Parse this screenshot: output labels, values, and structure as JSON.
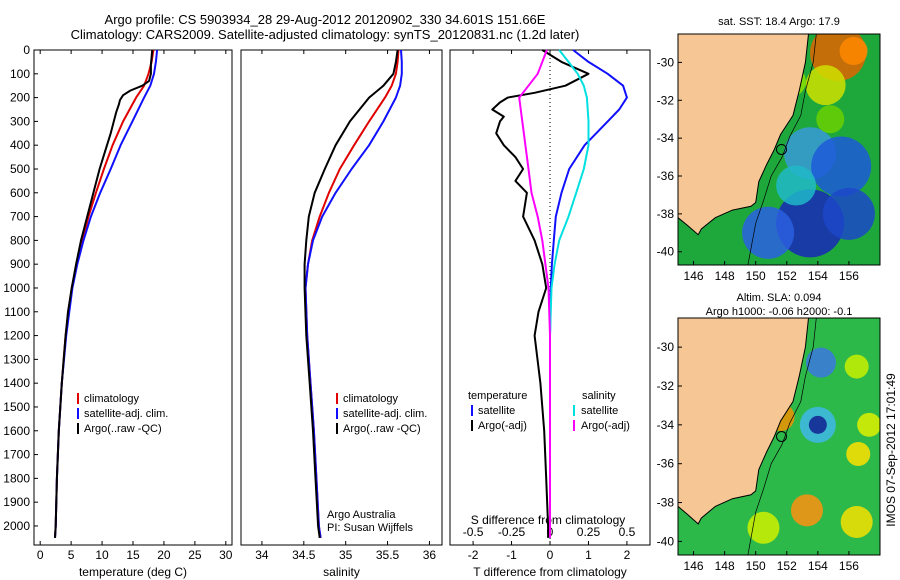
{
  "header": {
    "line1": "Argo profile: CS 5903934_28 29-Aug-2012 20120902_330 34.601S 151.66E",
    "line2": "Climatology: CARS2009. Satellite-adjusted climatology: synTS_20120831.nc (1.2d later)"
  },
  "colors": {
    "climatology": "#e00000",
    "satellite": "#1010ff",
    "argo": "#000000",
    "sat_salinity": "#00e0e0",
    "argo_salinity": "#ff00ff",
    "land": "#f6c795"
  },
  "chart_data": [
    {
      "type": "line",
      "id": "temperature",
      "xlabel": "temperature (deg C)",
      "xlim": [
        -1,
        31
      ],
      "ylim": [
        2080,
        0
      ],
      "xticks": [
        "0",
        "5",
        "10",
        "15",
        "20",
        "25",
        "30"
      ],
      "yticks": [
        "0",
        "100",
        "200",
        "300",
        "400",
        "500",
        "600",
        "700",
        "800",
        "900",
        "1000",
        "1100",
        "1200",
        "1300",
        "1400",
        "1500",
        "1600",
        "1700",
        "1800",
        "1900",
        "2000"
      ],
      "legend": [
        "climatology",
        "satellite-adj. clim.",
        "Argo(..raw -QC)"
      ],
      "series": [
        {
          "name": "climatology",
          "depth": [
            0,
            50,
            100,
            150,
            200,
            300,
            400,
            500,
            600,
            700,
            800,
            900,
            1000,
            1200,
            1400,
            1600,
            1800,
            2000,
            2050
          ],
          "values": [
            18.3,
            18.0,
            17.5,
            16.8,
            15.5,
            13.4,
            11.7,
            10.3,
            9.0,
            7.8,
            6.8,
            5.9,
            5.1,
            4.1,
            3.5,
            3.0,
            2.7,
            2.5,
            2.4
          ]
        },
        {
          "name": "satellite-adj. clim.",
          "depth": [
            0,
            50,
            100,
            150,
            200,
            300,
            400,
            500,
            600,
            700,
            800,
            900,
            1000,
            1200,
            1400,
            1600,
            1800,
            2000,
            2050
          ],
          "values": [
            18.9,
            18.7,
            18.4,
            17.8,
            16.8,
            14.9,
            13.0,
            11.4,
            9.7,
            8.2,
            7.0,
            6.0,
            5.2,
            4.2,
            3.5,
            3.0,
            2.7,
            2.5,
            2.4
          ]
        },
        {
          "name": "Argo(..raw -QC)",
          "depth": [
            0,
            30,
            60,
            100,
            130,
            150,
            170,
            190,
            210,
            230,
            260,
            300,
            350,
            400,
            450,
            500,
            600,
            700,
            800,
            900,
            1000,
            1100,
            1200,
            1400,
            1600,
            1800,
            2000,
            2050
          ],
          "values": [
            18.1,
            18.0,
            17.9,
            17.9,
            17.6,
            16.5,
            14.6,
            13.4,
            12.9,
            12.7,
            12.3,
            11.9,
            11.4,
            10.8,
            10.2,
            9.6,
            8.6,
            7.6,
            6.6,
            5.8,
            5.1,
            4.5,
            4.1,
            3.5,
            3.0,
            2.7,
            2.5,
            2.4
          ]
        }
      ]
    },
    {
      "type": "line",
      "id": "salinity",
      "xlabel": "salinity",
      "xlim": [
        33.75,
        36.15
      ],
      "ylim": [
        2080,
        0
      ],
      "xticks": [
        "34",
        "34.5",
        "35",
        "35.5",
        "36"
      ],
      "legend": [
        "climatology",
        "satellite-adj. clim.",
        "Argo(..raw -QC)"
      ],
      "annotation": [
        "Argo Australia",
        "PI: Susan Wijffels"
      ],
      "series": [
        {
          "name": "climatology",
          "depth": [
            0,
            50,
            100,
            150,
            200,
            300,
            400,
            500,
            600,
            700,
            800,
            900,
            1000,
            1200,
            1400,
            1600,
            1800,
            2000,
            2050
          ],
          "values": [
            35.63,
            35.62,
            35.6,
            35.55,
            35.47,
            35.28,
            35.1,
            34.93,
            34.8,
            34.69,
            34.6,
            34.55,
            34.52,
            34.54,
            34.58,
            34.62,
            34.65,
            34.68,
            34.7
          ]
        },
        {
          "name": "satellite-adj. clim.",
          "depth": [
            0,
            50,
            100,
            150,
            200,
            300,
            400,
            500,
            600,
            700,
            800,
            900,
            1000,
            1200,
            1400,
            1600,
            1800,
            2000,
            2050
          ],
          "values": [
            35.66,
            35.67,
            35.67,
            35.65,
            35.6,
            35.45,
            35.28,
            35.07,
            34.88,
            34.72,
            34.61,
            34.55,
            34.52,
            34.54,
            34.58,
            34.62,
            34.65,
            34.68,
            34.7
          ]
        },
        {
          "name": "Argo(..raw -QC)",
          "depth": [
            0,
            50,
            100,
            150,
            200,
            300,
            400,
            500,
            600,
            700,
            800,
            900,
            1000,
            1200,
            1400,
            1600,
            1800,
            2000,
            2050
          ],
          "values": [
            35.62,
            35.6,
            35.57,
            35.45,
            35.28,
            35.05,
            34.88,
            34.75,
            34.63,
            34.56,
            34.53,
            34.51,
            34.51,
            34.53,
            34.57,
            34.61,
            34.64,
            34.67,
            34.69
          ]
        }
      ]
    },
    {
      "type": "line",
      "id": "difference",
      "xlabel": "T difference from climatology",
      "xlabel2": "S difference from climatology",
      "xlim": [
        -2.6,
        2.6
      ],
      "ylim": [
        2080,
        0
      ],
      "xticks": [
        "-2",
        "-1",
        "0",
        "1",
        "2"
      ],
      "xticks2": [
        "-0.5",
        "-0.25",
        "0",
        "0.25",
        "0.5"
      ],
      "legend_left_title": "temperature",
      "legend_right_title": "salinity",
      "legend_left": [
        "satellite",
        "Argo(-adj)"
      ],
      "legend_right": [
        "satellite",
        "Argo(-adj)"
      ],
      "series": [
        {
          "name": "temperature satellite",
          "depth": [
            0,
            50,
            100,
            150,
            200,
            250,
            300,
            350,
            400,
            500,
            600,
            700,
            800,
            900,
            1000,
            1200,
            1500,
            1800,
            2050
          ],
          "values": [
            0.6,
            1.0,
            1.5,
            1.9,
            2.0,
            1.8,
            1.5,
            1.2,
            0.9,
            0.5,
            0.3,
            0.15,
            0.1,
            0.05,
            0.02,
            0.0,
            0.0,
            0.0,
            0.0
          ]
        },
        {
          "name": "temperature Argo(-adj)",
          "depth": [
            0,
            50,
            100,
            150,
            180,
            200,
            220,
            250,
            280,
            300,
            350,
            400,
            450,
            500,
            550,
            600,
            700,
            800,
            900,
            1000,
            1100,
            1200,
            1400,
            1600,
            1800,
            2000,
            2050
          ],
          "values": [
            -0.2,
            0.3,
            1.0,
            0.4,
            -0.4,
            -1.1,
            -1.3,
            -1.5,
            -1.2,
            -1.3,
            -1.4,
            -1.2,
            -0.9,
            -0.7,
            -0.9,
            -0.6,
            -0.7,
            -0.4,
            -0.2,
            -0.1,
            -0.3,
            -0.4,
            -0.25,
            -0.15,
            -0.1,
            -0.05,
            -0.05
          ]
        },
        {
          "name": "salinity satellite",
          "depth": [
            0,
            50,
            100,
            150,
            200,
            300,
            400,
            500,
            600,
            700,
            800,
            900,
            1000,
            1200,
            1500,
            1800,
            2050
          ],
          "values": [
            0.06,
            0.12,
            0.18,
            0.22,
            0.24,
            0.25,
            0.25,
            0.22,
            0.17,
            0.12,
            0.06,
            0.03,
            0.01,
            0.0,
            0.0,
            0.0,
            0.0
          ]
        },
        {
          "name": "salinity Argo(-adj)",
          "depth": [
            0,
            50,
            100,
            150,
            200,
            300,
            400,
            500,
            600,
            700,
            800,
            900,
            1000,
            1200,
            1500,
            1800,
            2050
          ],
          "values": [
            -0.02,
            -0.05,
            -0.08,
            -0.14,
            -0.2,
            -0.18,
            -0.16,
            -0.14,
            -0.12,
            -0.08,
            -0.05,
            -0.03,
            -0.01,
            0.0,
            0.0,
            0.0,
            0.0
          ]
        }
      ]
    },
    {
      "type": "heatmap",
      "id": "sst-map",
      "title": "sat. SST: 18.4  Argo: 17.9",
      "xticks": [
        "146",
        "148",
        "150",
        "152",
        "154",
        "156"
      ],
      "yticks": [
        "-30",
        "-32",
        "-34",
        "-36",
        "-38",
        "-40"
      ],
      "xlim": [
        145,
        158
      ],
      "ylim": [
        -40.7,
        -28.5
      ],
      "argo_position": [
        151.66,
        -34.6
      ]
    },
    {
      "type": "heatmap",
      "id": "sla-map",
      "title1": "Altim. SLA: 0.094",
      "title2": "Argo h1000: -0.06  h2000: -0.1",
      "xticks": [
        "146",
        "148",
        "150",
        "152",
        "154",
        "156"
      ],
      "yticks": [
        "-30",
        "-32",
        "-34",
        "-36",
        "-38",
        "-40"
      ],
      "xlim": [
        145,
        158
      ],
      "ylim": [
        -40.7,
        -28.5
      ],
      "argo_position": [
        151.66,
        -34.6
      ]
    }
  ],
  "timestamp": "IMOS 07-Sep-2012 17:01:49"
}
